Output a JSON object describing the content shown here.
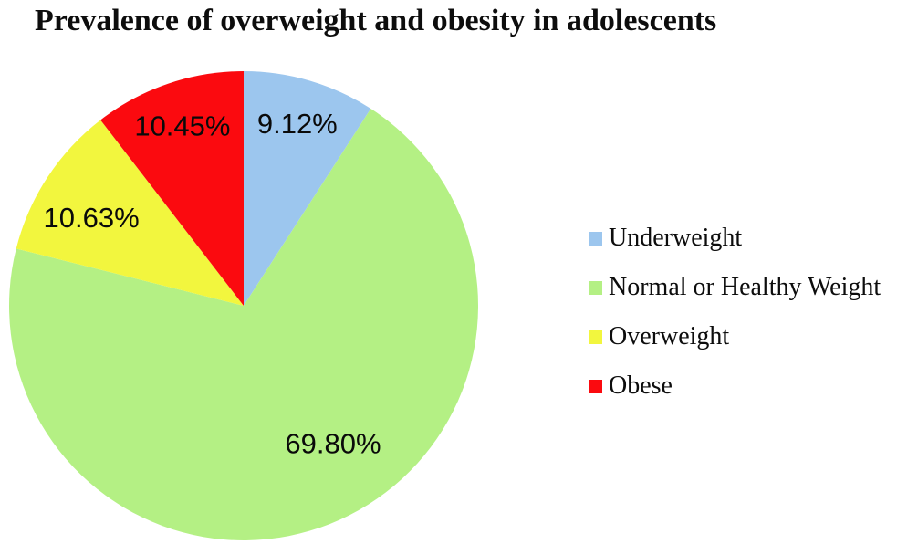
{
  "title": "Prevalence of overweight and obesity in adolescents",
  "chart_data": {
    "type": "pie",
    "title": "Prevalence of overweight and obesity in adolescents",
    "start_angle_deg": 0,
    "direction": "clockwise",
    "legend_position": "right",
    "data_labels": "percent",
    "slices": [
      {
        "label": "Underweight",
        "value": 9.12,
        "display": "9.12%",
        "color": "#9CC6EE"
      },
      {
        "label": "Normal or Healthy Weight",
        "value": 69.8,
        "display": "69.80%",
        "color": "#B4F084"
      },
      {
        "label": "Overweight",
        "value": 10.63,
        "display": "10.63%",
        "color": "#F2F63E"
      },
      {
        "label": "Obese",
        "value": 10.45,
        "display": "10.45%",
        "color": "#FB0A0F"
      }
    ]
  }
}
